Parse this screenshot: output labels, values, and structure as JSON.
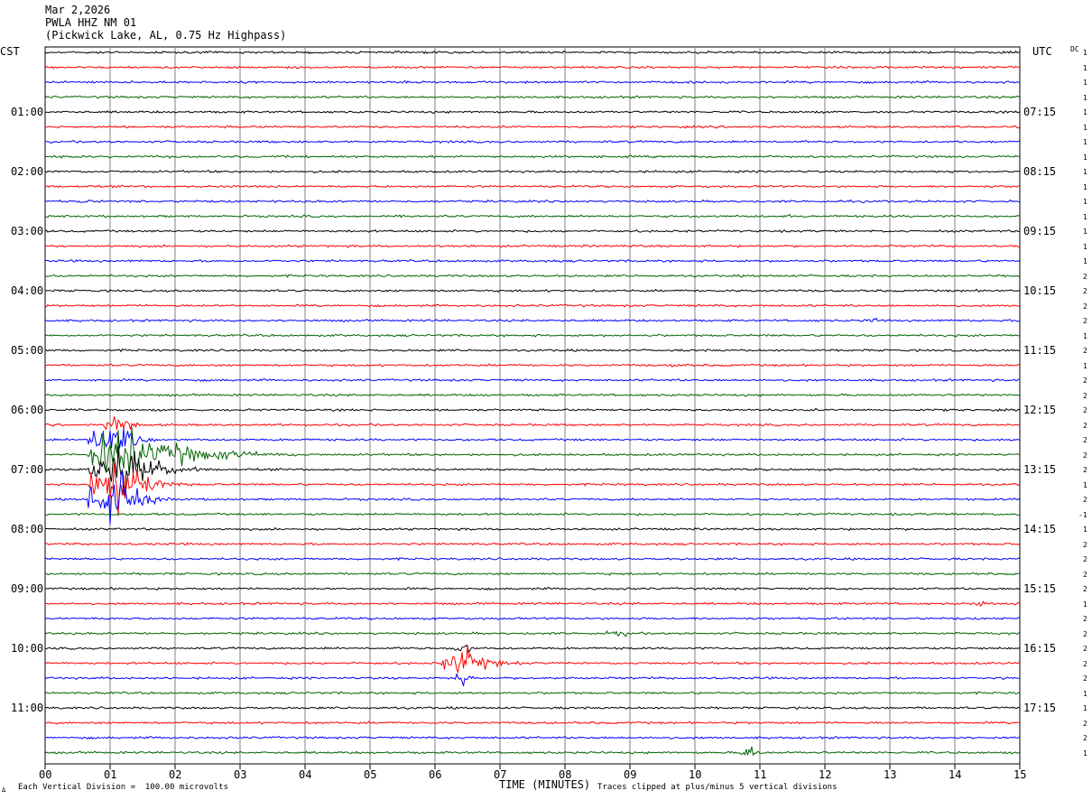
{
  "header": {
    "date": "Mar 2,2026",
    "station": "PWLA HHZ NM 01",
    "location": "(Pickwick Lake, AL, 0.75 Hz Highpass)"
  },
  "left_timezone": "CST",
  "right_timezone": "UTC",
  "dc_label": "DC",
  "footer": {
    "scale_note": "Each Vertical Division =  100.00 microvolts",
    "clip_note": "Traces clipped at plus/minus 5 vertical divisions",
    "corner_mark": "∆"
  },
  "colors": {
    "trace_cycle": [
      "#000000",
      "#ff0000",
      "#0000ff",
      "#006400"
    ],
    "grid": "#808080"
  },
  "chart_data": {
    "type": "line",
    "xlabel": "TIME (MINUTES)",
    "x_ticks": [
      "00",
      "01",
      "02",
      "03",
      "04",
      "05",
      "06",
      "07",
      "08",
      "09",
      "10",
      "11",
      "12",
      "13",
      "14",
      "15"
    ],
    "xlim": [
      0,
      15
    ],
    "left_hour_labels": [
      "01:00",
      "02:00",
      "03:00",
      "04:00",
      "05:00",
      "06:00",
      "07:00",
      "08:00",
      "09:00",
      "10:00",
      "11:00"
    ],
    "right_hour_labels": [
      "07:15",
      "08:15",
      "09:15",
      "10:15",
      "11:15",
      "12:15",
      "13:15",
      "14:15",
      "15:15",
      "16:15",
      "17:15"
    ],
    "traces_per_hour": 4,
    "trace_count": 48,
    "dc_offsets": [
      "1",
      "1",
      "1",
      "1",
      "1",
      "1",
      "1",
      "1",
      "1",
      "1",
      "1",
      "1",
      "1",
      "1",
      "1",
      "2",
      "2",
      "2",
      "2",
      "1",
      "2",
      "1",
      "2",
      "2",
      "2",
      "2",
      "2",
      "2",
      "2",
      "1",
      "2",
      "-1",
      "1",
      "2",
      "2",
      "2",
      "2",
      "1",
      "2",
      "2",
      "2",
      "2",
      "2",
      "1",
      "1",
      "2",
      "2",
      "1"
    ],
    "events": [
      {
        "trace": 27,
        "start_min": 0.65,
        "peak_min": 1.2,
        "end_min": 4.0,
        "peak_divisions": 5,
        "note": "clipped local event"
      },
      {
        "trace": 28,
        "start_min": 0.65,
        "peak_min": 1.2,
        "end_min": 2.6,
        "peak_divisions": 5
      },
      {
        "trace": 29,
        "start_min": 0.65,
        "peak_min": 1.2,
        "end_min": 2.3,
        "peak_divisions": 5
      },
      {
        "trace": 30,
        "start_min": 0.65,
        "peak_min": 1.2,
        "end_min": 2.0,
        "peak_divisions": 5
      },
      {
        "trace": 26,
        "start_min": 0.65,
        "peak_min": 1.2,
        "end_min": 1.8,
        "peak_divisions": 5
      },
      {
        "trace": 25,
        "start_min": 0.9,
        "peak_min": 1.2,
        "end_min": 1.6,
        "peak_divisions": 2
      },
      {
        "trace": 41,
        "start_min": 6.1,
        "peak_min": 6.45,
        "end_min": 7.5,
        "peak_divisions": 3
      },
      {
        "trace": 40,
        "start_min": 6.3,
        "peak_min": 6.45,
        "end_min": 6.7,
        "peak_divisions": 1.5
      },
      {
        "trace": 42,
        "start_min": 6.3,
        "peak_min": 6.45,
        "end_min": 6.7,
        "peak_divisions": 1.5
      },
      {
        "trace": 39,
        "start_min": 8.6,
        "peak_min": 8.85,
        "end_min": 9.2,
        "peak_divisions": 0.8
      },
      {
        "trace": 47,
        "start_min": 10.7,
        "peak_min": 10.85,
        "end_min": 11.2,
        "peak_divisions": 1.5
      },
      {
        "trace": 37,
        "start_min": 14.2,
        "peak_min": 14.4,
        "end_min": 14.9,
        "peak_divisions": 0.6
      },
      {
        "trace": 42,
        "start_min": 14.7,
        "peak_min": 14.9,
        "end_min": 15.0,
        "peak_divisions": 0.6
      },
      {
        "trace": 11,
        "start_min": 11.3,
        "peak_min": 11.45,
        "end_min": 11.8,
        "peak_divisions": 0.4
      },
      {
        "trace": 18,
        "start_min": 12.6,
        "peak_min": 12.8,
        "end_min": 13.0,
        "peak_divisions": 0.5
      },
      {
        "trace": 10,
        "start_min": 0.5,
        "peak_min": 0.65,
        "end_min": 0.8,
        "peak_divisions": 0.5
      },
      {
        "trace": 21,
        "start_min": 9.6,
        "peak_min": 9.75,
        "end_min": 9.9,
        "peak_divisions": 0.5
      }
    ]
  }
}
